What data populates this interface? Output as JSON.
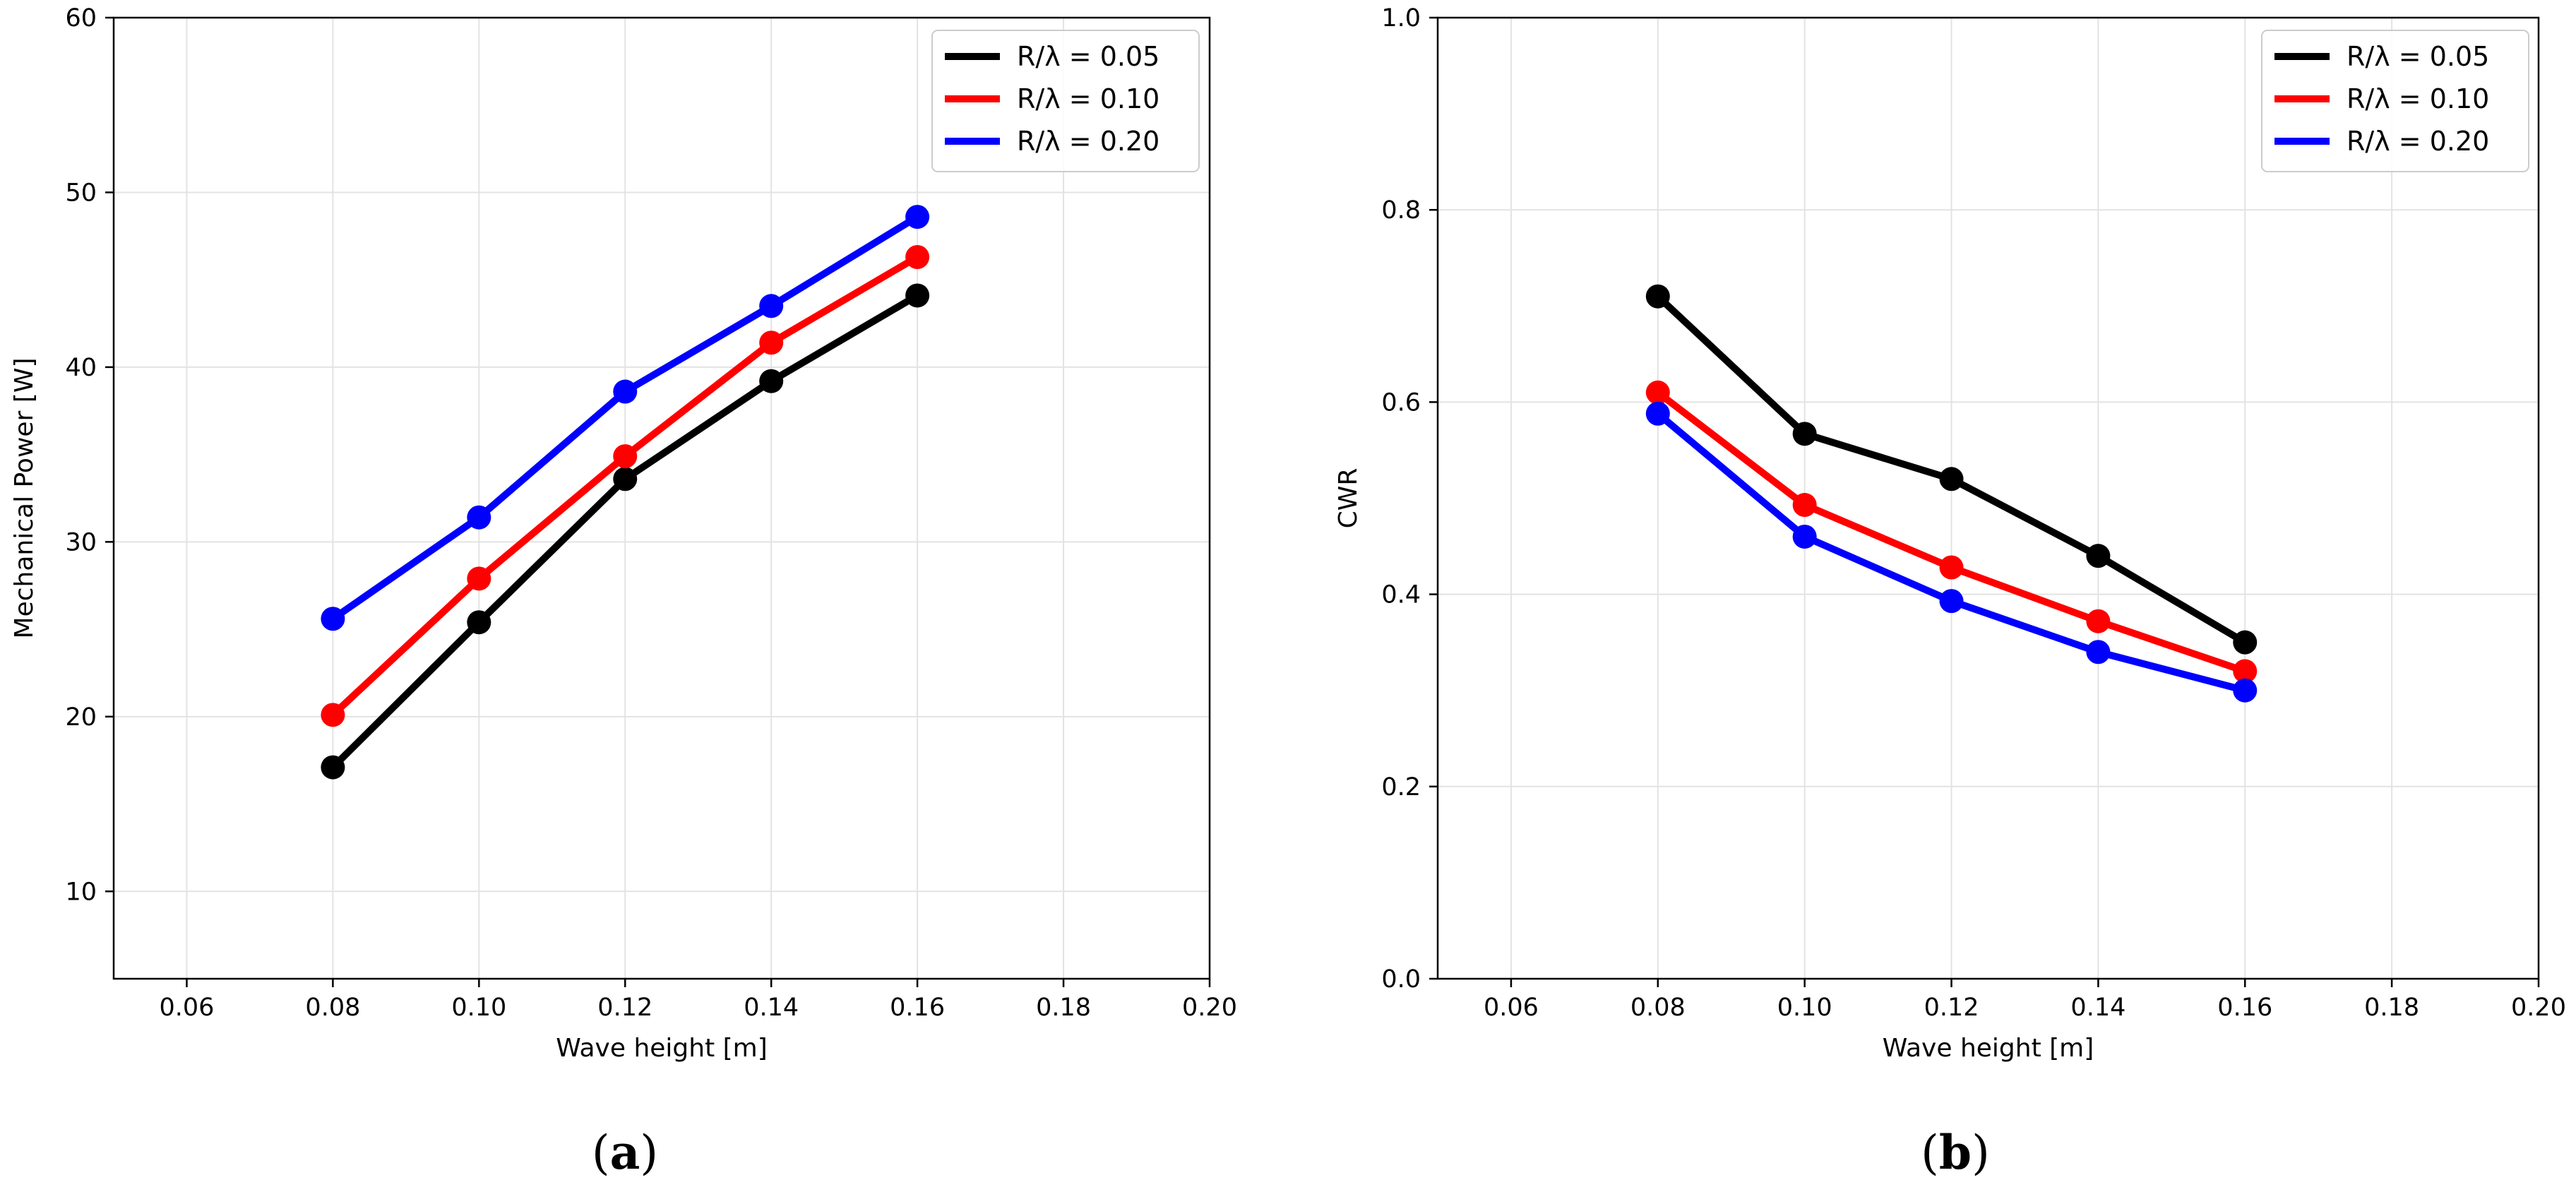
{
  "chart_data": [
    {
      "type": "line",
      "panel_label": "(a)",
      "panel_letter": "a",
      "xlabel": "Wave height [m]",
      "ylabel": "Mechanical Power [W]",
      "xlim": [
        0.05,
        0.2
      ],
      "ylim": [
        5,
        60
      ],
      "xticks": [
        0.06,
        0.08,
        0.1,
        0.12,
        0.14,
        0.16,
        0.18,
        0.2
      ],
      "xtick_labels": [
        "0.06",
        "0.08",
        "0.10",
        "0.12",
        "0.14",
        "0.16",
        "0.18",
        "0.20"
      ],
      "yticks": [
        10,
        20,
        30,
        40,
        50,
        60
      ],
      "ytick_labels": [
        "10",
        "20",
        "30",
        "40",
        "50",
        "60"
      ],
      "grid": true,
      "legend_position": "top-right",
      "x": [
        0.08,
        0.1,
        0.12,
        0.14,
        0.16
      ],
      "series": [
        {
          "name": "R/λ = 0.05",
          "color": "#000000",
          "values": [
            17.1,
            25.4,
            33.6,
            39.2,
            44.1
          ]
        },
        {
          "name": "R/λ = 0.10",
          "color": "#ff0000",
          "values": [
            20.1,
            27.9,
            34.9,
            41.4,
            46.3
          ]
        },
        {
          "name": "R/λ = 0.20",
          "color": "#0000ff",
          "values": [
            25.6,
            31.4,
            38.6,
            43.5,
            48.6
          ]
        }
      ]
    },
    {
      "type": "line",
      "panel_label": "(b)",
      "panel_letter": "b",
      "xlabel": "Wave height [m]",
      "ylabel": "CWR",
      "xlim": [
        0.05,
        0.2
      ],
      "ylim": [
        0,
        1
      ],
      "xticks": [
        0.06,
        0.08,
        0.1,
        0.12,
        0.14,
        0.16,
        0.18,
        0.2
      ],
      "xtick_labels": [
        "0.06",
        "0.08",
        "0.10",
        "0.12",
        "0.14",
        "0.16",
        "0.18",
        "0.20"
      ],
      "yticks": [
        0,
        0.2,
        0.4,
        0.6,
        0.8,
        1
      ],
      "ytick_labels": [
        "0.0",
        "0.2",
        "0.4",
        "0.6",
        "0.8",
        "1.0"
      ],
      "grid": true,
      "legend_position": "top-right",
      "x": [
        0.08,
        0.1,
        0.12,
        0.14,
        0.16
      ],
      "series": [
        {
          "name": "R/λ = 0.05",
          "color": "#000000",
          "values": [
            0.71,
            0.567,
            0.52,
            0.44,
            0.35
          ]
        },
        {
          "name": "R/λ = 0.10",
          "color": "#ff0000",
          "values": [
            0.61,
            0.493,
            0.428,
            0.372,
            0.32
          ]
        },
        {
          "name": "R/λ = 0.20",
          "color": "#0000ff",
          "values": [
            0.588,
            0.46,
            0.393,
            0.34,
            0.3
          ]
        }
      ]
    }
  ]
}
